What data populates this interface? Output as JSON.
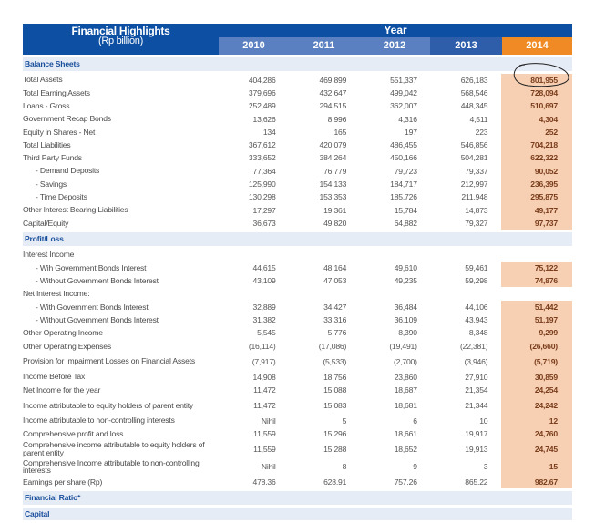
{
  "header": {
    "title": "Financial Highlights",
    "subtitle": "(Rp billion)",
    "year_label": "Year",
    "years": [
      "2010",
      "2011",
      "2012",
      "2013",
      "2014"
    ]
  },
  "colors": {
    "header_blue": "#0c4fa3",
    "year_light": "#5a80c2",
    "year_mid": "#3f69b3",
    "year_dark": "#2a5aa8",
    "highlight": "#f08a24",
    "highlight_fill": "#f7cfb2"
  },
  "rows": [
    {
      "type": "section",
      "label": "Balance Sheets"
    },
    {
      "type": "row",
      "label": "Total Assets",
      "values": [
        "404,286",
        "469,899",
        "551,337",
        "626,183",
        "801,955"
      ]
    },
    {
      "type": "row",
      "label": "Total Earning Assets",
      "values": [
        "379,696",
        "432,647",
        "499,042",
        "568,546",
        "728,094"
      ]
    },
    {
      "type": "row",
      "label": "Loans - Gross",
      "values": [
        "252,489",
        "294,515",
        "362,007",
        "448,345",
        "510,697"
      ]
    },
    {
      "type": "row",
      "label": "Government Recap Bonds",
      "values": [
        "13,626",
        "8,996",
        "4,316",
        "4,511",
        "4,304"
      ]
    },
    {
      "type": "row",
      "label": "Equity in Shares - Net",
      "values": [
        "134",
        "165",
        "197",
        "223",
        "252"
      ]
    },
    {
      "type": "row",
      "label": "Total Liabilities",
      "values": [
        "367,612",
        "420,079",
        "486,455",
        "546,856",
        "704,218"
      ]
    },
    {
      "type": "row",
      "label": "Third Party Funds",
      "values": [
        "333,652",
        "384,264",
        "450,166",
        "504,281",
        "622,322"
      ]
    },
    {
      "type": "row",
      "indent": true,
      "label": "- Demand Deposits",
      "values": [
        "77,364",
        "76,779",
        "79,723",
        "79,337",
        "90,052"
      ]
    },
    {
      "type": "row",
      "indent": true,
      "label": "- Savings",
      "values": [
        "125,990",
        "154,133",
        "184,717",
        "212,997",
        "236,395"
      ]
    },
    {
      "type": "row",
      "indent": true,
      "label": "- Time Deposits",
      "values": [
        "130,298",
        "153,353",
        "185,726",
        "211,948",
        "295,875"
      ]
    },
    {
      "type": "row",
      "label": "Other Interest Bearing Liabilities",
      "values": [
        "17,297",
        "19,361",
        "15,784",
        "14,873",
        "49,177"
      ]
    },
    {
      "type": "row",
      "label": "Capital/Equity",
      "values": [
        "36,673",
        "49,820",
        "64,882",
        "79,327",
        "97,737"
      ]
    },
    {
      "type": "section",
      "label": "Profit/Loss"
    },
    {
      "type": "row",
      "label": "Interest Income",
      "values": []
    },
    {
      "type": "row",
      "indent": true,
      "label": "- Wih Government Bonds Interest",
      "values": [
        "44,615",
        "48,164",
        "49,610",
        "59,461",
        "75,122"
      ]
    },
    {
      "type": "row",
      "indent": true,
      "label": "- Without Government Bonds Interest",
      "values": [
        "43,109",
        "47,053",
        "49,235",
        "59,298",
        "74,876"
      ]
    },
    {
      "type": "row",
      "label": "Net Interest Income:",
      "values": []
    },
    {
      "type": "row",
      "indent": true,
      "label": "- With Government Bonds Interest",
      "values": [
        "32,889",
        "34,427",
        "36,484",
        "44,106",
        "51,442"
      ]
    },
    {
      "type": "row",
      "indent": true,
      "label": "- Without Government Bonds Interest",
      "values": [
        "31,382",
        "33,316",
        "36,109",
        "43,943",
        "51,197"
      ]
    },
    {
      "type": "row",
      "label": "Other Operating Income",
      "values": [
        "5,545",
        "5,776",
        "8,390",
        "8,348",
        "9,299"
      ]
    },
    {
      "type": "row",
      "label": "Other Operating Expenses",
      "values": [
        "(16,114)",
        "(17,086)",
        "(19,491)",
        "(22,381)",
        "(26,660)"
      ]
    },
    {
      "type": "row2",
      "label": "Provision for Impairment Losses on Financial Assets",
      "values": [
        "(7,917)",
        "(5,533)",
        "(2,700)",
        "(3,946)",
        "(5,719)"
      ]
    },
    {
      "type": "row",
      "label": "Income Before Tax",
      "values": [
        "14,908",
        "18,756",
        "23,860",
        "27,910",
        "30,859"
      ]
    },
    {
      "type": "row",
      "label": "Net Income for the year",
      "values": [
        "11,472",
        "15,088",
        "18,687",
        "21,354",
        "24,254"
      ]
    },
    {
      "type": "row2",
      "label": "Income attributable to equity holders of parent entity",
      "values": [
        "11,472",
        "15,083",
        "18,681",
        "21,344",
        "24,242"
      ]
    },
    {
      "type": "row",
      "label": "Income attributable to non-controlling interests",
      "values": [
        "Nihil",
        "5",
        "6",
        "10",
        "12"
      ]
    },
    {
      "type": "row",
      "label": "Comprehensive profit and loss",
      "values": [
        "11,559",
        "15,296",
        "18,661",
        "19,917",
        "24,760"
      ]
    },
    {
      "type": "row2",
      "label": "Comprehensive income attributable to equity holders of parent entity",
      "values": [
        "11,559",
        "15,288",
        "18,652",
        "19,913",
        "24,745"
      ]
    },
    {
      "type": "row2",
      "label": "Comprehensive Income attributable to non-controlling interests",
      "values": [
        "Nihil",
        "8",
        "9",
        "3",
        "15"
      ]
    },
    {
      "type": "row",
      "label": "Earnings per share (Rp)",
      "values": [
        "478.36",
        "628.91",
        "757.26",
        "865.22",
        "982.67"
      ]
    },
    {
      "type": "section",
      "label": "Financial Ratio*"
    },
    {
      "type": "section",
      "label": "Capital"
    }
  ]
}
